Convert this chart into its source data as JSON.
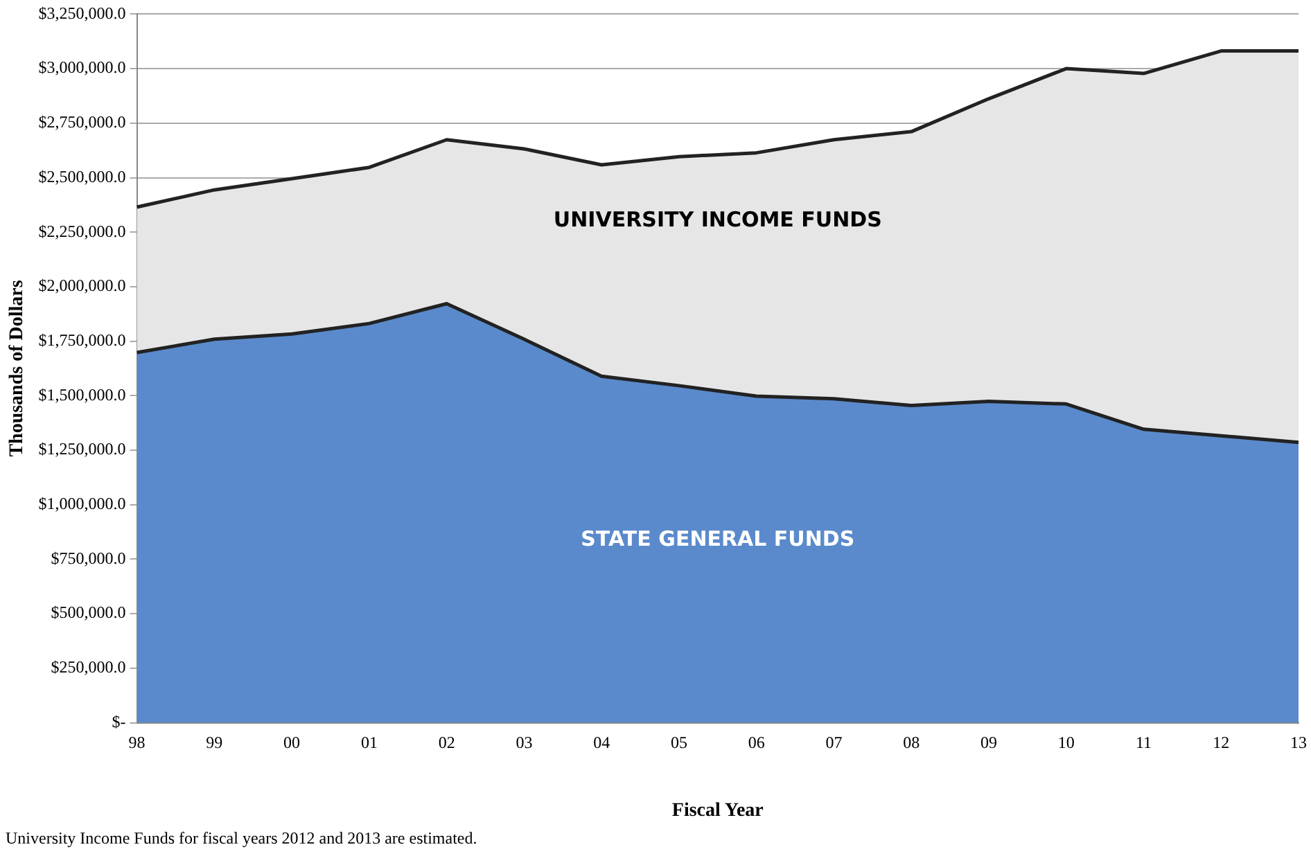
{
  "chart_data": {
    "type": "area",
    "stacked": true,
    "xlabel": "Fiscal Year",
    "ylabel": "Thousands of Dollars",
    "categories": [
      "98",
      "99",
      "00",
      "01",
      "02",
      "03",
      "04",
      "05",
      "06",
      "07",
      "08",
      "09",
      "10",
      "11",
      "12",
      "13"
    ],
    "series": [
      {
        "name": "STATE GENERAL FUNDS",
        "color": "#5a8acb",
        "values": [
          1698000,
          1759000,
          1783000,
          1831000,
          1922000,
          1759000,
          1589000,
          1546000,
          1498000,
          1486000,
          1455000,
          1474000,
          1462000,
          1346000,
          1316000,
          1286000
        ]
      },
      {
        "name": "UNIVERSITY INCOME FUNDS",
        "color": "#e6e6e6",
        "values": [
          667000,
          685000,
          712000,
          716000,
          752000,
          873000,
          970000,
          1050000,
          1116000,
          1188000,
          1256000,
          1388000,
          1538000,
          1632000,
          1765000,
          1795000
        ]
      }
    ],
    "ylim": [
      0,
      3250000
    ],
    "yticks": [
      {
        "value": 0,
        "label": "$-"
      },
      {
        "value": 250000,
        "label": "$250,000.0"
      },
      {
        "value": 500000,
        "label": "$500,000.0"
      },
      {
        "value": 750000,
        "label": "$750,000.0"
      },
      {
        "value": 1000000,
        "label": "$1,000,000.0"
      },
      {
        "value": 1250000,
        "label": "$1,250,000.0"
      },
      {
        "value": 1500000,
        "label": "$1,500,000.0"
      },
      {
        "value": 1750000,
        "label": "$1,750,000.0"
      },
      {
        "value": 2000000,
        "label": "$2,000,000.0"
      },
      {
        "value": 2250000,
        "label": "$2,250,000.0"
      },
      {
        "value": 2500000,
        "label": "$2,500,000.0"
      },
      {
        "value": 2750000,
        "label": "$2,750,000.0"
      },
      {
        "value": 3000000,
        "label": "$3,000,000.0"
      },
      {
        "value": 3250000,
        "label": "$3,250,000.0"
      }
    ],
    "grid": "y",
    "legend": false,
    "annotations": [
      "University Income Funds for fiscal years 2012 and 2013 are estimated."
    ]
  }
}
